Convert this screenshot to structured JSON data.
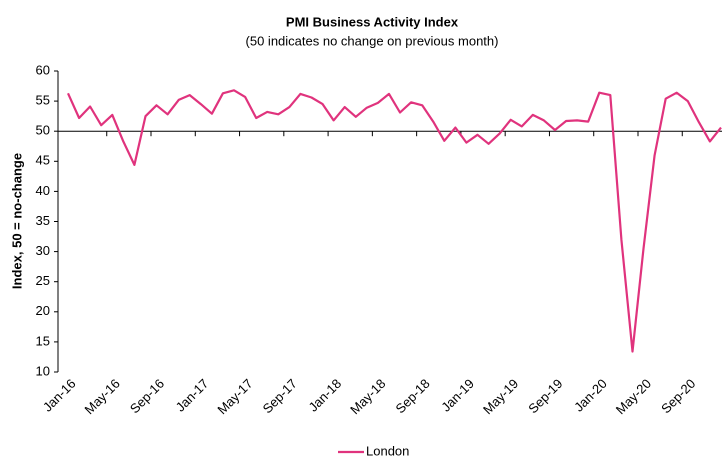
{
  "chart_data": {
    "type": "line",
    "title": "PMI Business Activity Index",
    "subtitle": "(50 indicates no change on previous month)",
    "y_label": "Index, 50 = no-change",
    "categories": [
      "Jan-16",
      null,
      null,
      null,
      "May-16",
      null,
      null,
      null,
      "Sep-16",
      null,
      null,
      null,
      "Jan-17",
      null,
      null,
      null,
      "May-17",
      null,
      null,
      null,
      "Sep-17",
      null,
      null,
      null,
      "Jan-18",
      null,
      null,
      null,
      "May-18",
      null,
      null,
      null,
      "Sep-18",
      null,
      null,
      null,
      "Jan-19",
      null,
      null,
      null,
      "May-19",
      null,
      null,
      null,
      "Sep-19",
      null,
      null,
      null,
      "Jan-20",
      null,
      null,
      null,
      "May-20",
      null,
      null,
      null,
      "Sep-20",
      null,
      null,
      null
    ],
    "series": [
      {
        "name": "London",
        "color": "#e0337d",
        "values": [
          56.3,
          52.2,
          54.1,
          51.0,
          52.7,
          48.3,
          44.4,
          52.5,
          54.3,
          52.8,
          55.2,
          56.0,
          54.5,
          52.9,
          56.3,
          56.8,
          55.7,
          52.2,
          53.2,
          52.8,
          54.0,
          56.2,
          55.6,
          54.5,
          51.8,
          54.0,
          52.4,
          53.9,
          54.7,
          56.2,
          53.1,
          54.8,
          54.3,
          51.6,
          48.4,
          50.6,
          48.1,
          49.4,
          47.9,
          49.6,
          51.9,
          50.8,
          52.7,
          51.8,
          50.2,
          51.7,
          51.8,
          51.6,
          56.4,
          56.0,
          32.0,
          13.4,
          30.5,
          46.0,
          55.4,
          56.4,
          55.0,
          51.5,
          48.3,
          50.6
        ]
      }
    ],
    "ylim": [
      10,
      60
    ],
    "yticks": [
      10,
      15,
      20,
      25,
      30,
      35,
      40,
      45,
      50,
      55,
      60
    ],
    "x_axis_at": 50,
    "legend": "bottom"
  }
}
